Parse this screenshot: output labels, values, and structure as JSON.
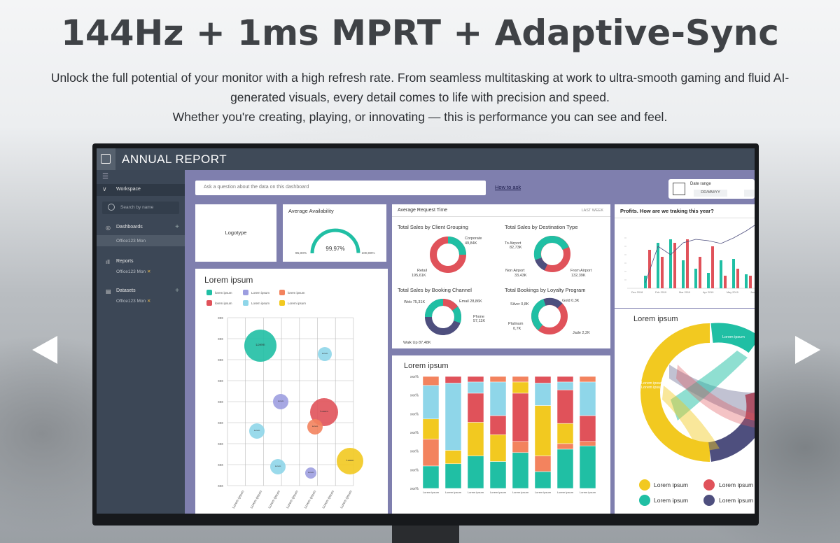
{
  "hero": {
    "title": "144Hz + 1ms MPRT + Adaptive-Sync",
    "line1": "Unlock the full potential of your monitor with a high refresh rate. From seamless multitasking at work to ultra-smooth gaming and fluid AI-",
    "line2": "generated visuals, every detail comes to life with precision and speed.",
    "line3": "Whether you're creating, playing, or innovating — this is performance you can see and feel."
  },
  "dashboard": {
    "title": "ANNUAL REPORT",
    "sidebar": {
      "workspace": "Workspace",
      "search_placeholder": "Search by name",
      "dashboards": "Dashboards",
      "dashboards_item": "Office123 Mon",
      "reports": "Reports",
      "reports_item": "Office123 Mon",
      "datasets": "Datasets",
      "datasets_item": "Office123 Mon"
    },
    "ask_placeholder": "Ask a question about the data on this dashboard",
    "ask_link": "How to ask",
    "date_range_label": "Date range",
    "date_range_value": "DD/MM/YY",
    "logotype": "Logotype",
    "availability": {
      "title": "Average Availability",
      "value": "99,97%",
      "min": "95,00%",
      "max": "100,00%",
      "fraction": 0.9997
    },
    "request": {
      "title": "Average Request Time",
      "period": "LAST WEEK",
      "client_title": "Total Sales by Client Grouping",
      "client_a": "Corporate",
      "client_a_val": "49,84K",
      "client_b": "Retail",
      "client_b_val": "195,61K",
      "dest_title": "Total Sales by Destination Type",
      "dest_a": "To Airport",
      "dest_a_val": "82,73K",
      "dest_b": "Non Airport",
      "dest_b_val": "33,43K",
      "dest_c": "From Airport",
      "dest_c_val": "132,39K",
      "booking_title": "Total Sales by Booking Channel",
      "booking_a": "Web 75,31K",
      "booking_b": "Email 28,86K",
      "booking_c": "Phone",
      "booking_c_val": "57,11K",
      "booking_d": "Walk Up 87,48K",
      "loyalty_title": "Total Bookings by Loyalty Program",
      "loyalty_a": "Silver 0,8K",
      "loyalty_b": "Gold 0,3K",
      "loyalty_c": "Platinum",
      "loyalty_c_val": "0,7K",
      "loyalty_d": "Jade 2,2K"
    },
    "profits": {
      "title": "Profits. How are we traking this year?",
      "x_labels": [
        "Dec 2018",
        "Feb 2019",
        "Mar 2019",
        "Apr 2019",
        "May 2019",
        "Jun"
      ]
    },
    "bubble": {
      "title": "Lorem ipsum",
      "legend": [
        "lorem ipsum",
        "Lorem ipsum",
        "lorem ipsum",
        "lorem ipsum",
        "Lorem ipsum",
        "Lorem ipsum"
      ],
      "y_tick": "xxx",
      "x_tick": "Lorem ipsum",
      "bubble_text": "Lorem ipsum Xxx%"
    },
    "stacked": {
      "title": "Lorem ipsum",
      "y_tick": "xxx%",
      "x_tick": "Lorem ipsum"
    },
    "sankey": {
      "title": "Lorem ipsum",
      "label": "Lorem ipsum",
      "legend": [
        "Lorem ipsum",
        "Lorem ipsum",
        "Lorem ipsum",
        "Lorem ipsum"
      ]
    }
  },
  "colors": {
    "teal": "#20bfa4",
    "red": "#e0525a",
    "navy": "#4e4f7e",
    "yellow": "#f2c920",
    "orange": "#f3835e",
    "light_blue": "#8fd6e9",
    "lilac": "#9d9ee0",
    "accent_bg": "#7f7fae"
  }
}
